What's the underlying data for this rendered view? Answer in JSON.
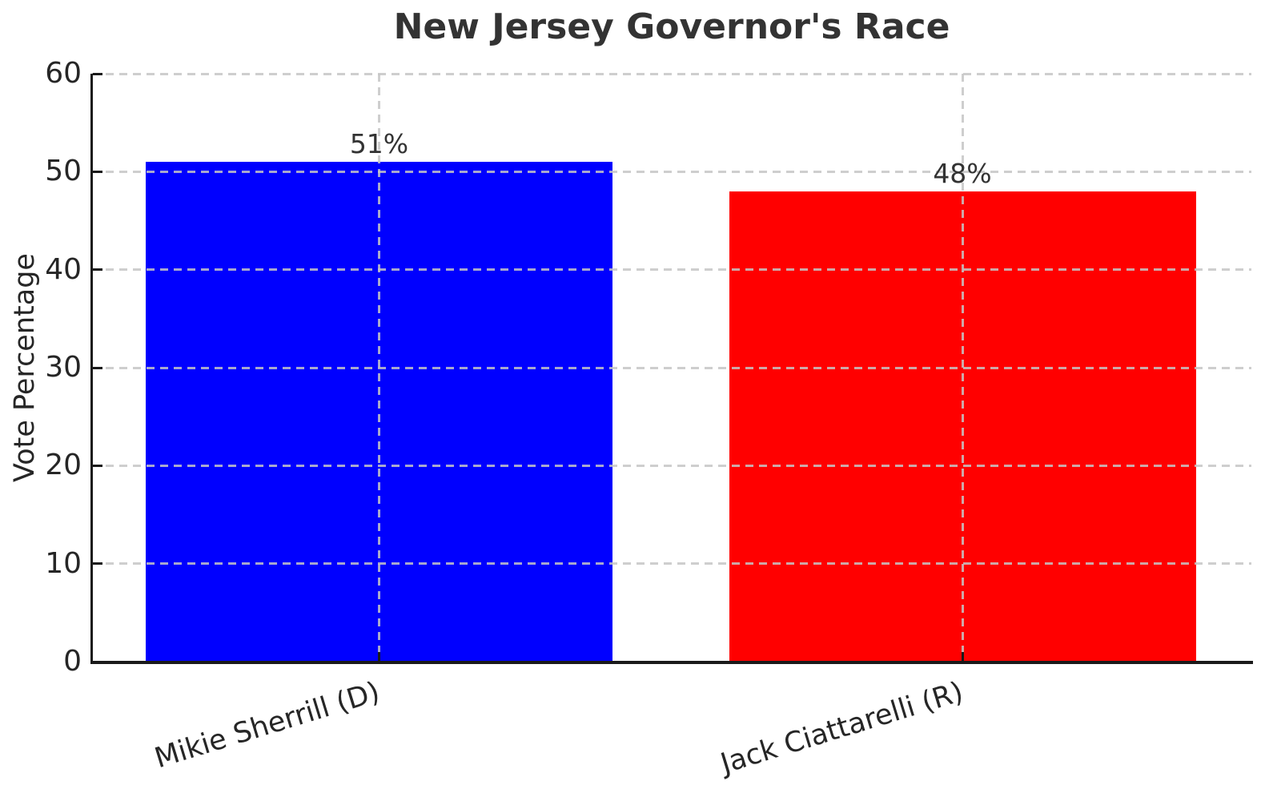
{
  "figure": {
    "title": "New Jersey Governor's Race",
    "ylabel": "Vote Percentage"
  },
  "chart_data": {
    "type": "bar",
    "title": "New Jersey Governor's Race",
    "xlabel": "",
    "ylabel": "Vote Percentage",
    "categories": [
      "Mikie Sherrill (D)",
      "Jack Ciattarelli (R)"
    ],
    "values": [
      51,
      48
    ],
    "value_labels": [
      "51%",
      "48%"
    ],
    "bar_colors": [
      "#0000ff",
      "#ff0000"
    ],
    "ylim": [
      0,
      60
    ],
    "yticks": [
      0,
      10,
      20,
      30,
      40,
      50,
      60
    ],
    "ytick_labels": [
      "0",
      "10",
      "20",
      "30",
      "40",
      "50",
      "60"
    ],
    "grid": "dashed",
    "grid_color": "#c6c6c6",
    "legend": "none",
    "background_color": "#ffffff",
    "axis_color": "#1a1a1a",
    "text_color": "#262626"
  }
}
